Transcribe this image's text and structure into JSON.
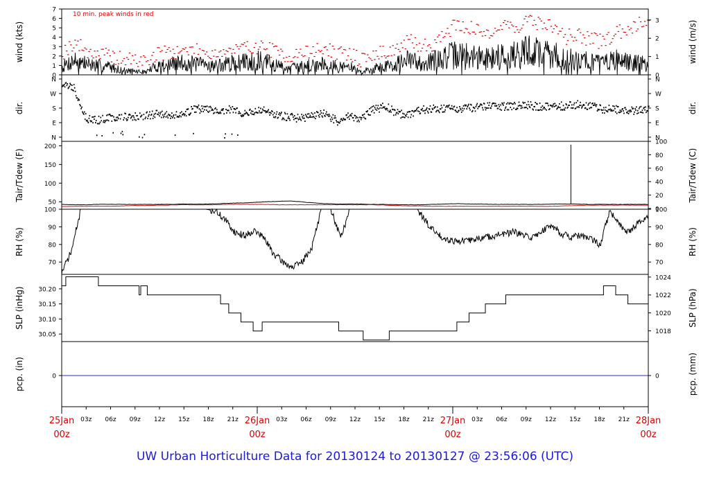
{
  "footer_title": "UW Urban Horticulture Data for 20130124  to  20130127 @ 23:56:06  (UTC)",
  "colors": {
    "axis": "#000000",
    "trace": "#000000",
    "peak": "#dd0000",
    "dewpoint": "#cc1111",
    "precip": "#2a2adb",
    "day_label": "#dd0000",
    "title": "#1a1adb"
  },
  "chart_data": [
    {
      "type": "line",
      "panel": "wind",
      "annotation": "10 min. peak winds in red",
      "ylabel": "wind (kts)",
      "ylabel_right": "wind (m/s)",
      "ylim": [
        0,
        7
      ],
      "yticks": [
        "0",
        "1",
        "2",
        "3",
        "4",
        "5",
        "6",
        "7"
      ],
      "ylim_right": [
        0,
        3.6
      ],
      "yticks_right": [
        "0",
        "1",
        "2",
        "3"
      ],
      "series": [
        {
          "role": "trace",
          "values": [
            0.8,
            1.6,
            1.2,
            1.0,
            0.9,
            0.5,
            0.4,
            0.3,
            1.0,
            1.1,
            1.3,
            1.2,
            1.1,
            1.0,
            1.2,
            1.3,
            1.6,
            1.4,
            1.0,
            0.7,
            0.9,
            1.1,
            1.3,
            0.8,
            0.9,
            0.3,
            0.7,
            0.9,
            1.2,
            1.6,
            1.3,
            1.5,
            1.9,
            2.2,
            2.0,
            1.8,
            1.9,
            2.1,
            2.2,
            2.6,
            2.4,
            2.2,
            1.6,
            1.8,
            1.5,
            1.4,
            1.7,
            1.4,
            1.3,
            1.1
          ]
        },
        {
          "role": "peak",
          "values": [
            2.4,
            3.5,
            2.6,
            2.3,
            2.0,
            1.7,
            1.6,
            1.5,
            2.3,
            2.5,
            2.6,
            2.6,
            2.4,
            2.4,
            2.6,
            2.8,
            3.1,
            2.9,
            2.4,
            2.0,
            2.3,
            2.6,
            2.8,
            2.2,
            2.3,
            1.6,
            2.1,
            2.5,
            2.8,
            3.6,
            3.1,
            3.3,
            4.5,
            5.5,
            5.0,
            4.5,
            4.8,
            5.3,
            5.2,
            5.8,
            5.5,
            5.2,
            4.0,
            4.4,
            3.8,
            3.6,
            4.2,
            4.9,
            5.5,
            6.0
          ]
        }
      ]
    },
    {
      "type": "scatter",
      "panel": "direction",
      "ylabel": "dir.",
      "yticks": [
        "N",
        "E",
        "S",
        "W",
        "N"
      ],
      "ylim": [
        0,
        360
      ],
      "values": [
        330,
        310,
        120,
        110,
        125,
        130,
        130,
        140,
        145,
        140,
        140,
        180,
        175,
        170,
        175,
        150,
        160,
        170,
        140,
        130,
        120,
        140,
        150,
        100,
        135,
        120,
        175,
        195,
        150,
        140,
        175,
        180,
        180,
        180,
        185,
        190,
        195,
        195,
        200,
        200,
        195,
        200,
        195,
        205,
        200,
        180,
        175,
        175,
        170,
        175
      ]
    },
    {
      "type": "line",
      "panel": "temperature",
      "ylabel": "Tair/Tdew (F)",
      "ylabel_right": "Tair/Tdew (C)",
      "ylim": [
        30,
        212
      ],
      "yticks": [
        "50",
        "100",
        "150",
        "200"
      ],
      "ylim_right": [
        -1.1,
        100
      ],
      "yticks_right": [
        "0",
        "20",
        "40",
        "60",
        "80",
        "100"
      ],
      "series": [
        {
          "role": "air",
          "values": [
            43,
            42,
            42,
            43,
            43,
            43,
            43,
            43,
            43,
            43,
            44,
            44,
            44,
            45,
            46,
            47,
            48,
            50,
            51,
            52,
            50,
            47,
            45,
            44,
            44,
            44,
            43,
            43,
            42,
            42,
            42,
            43,
            44,
            45,
            44,
            44,
            43,
            43,
            43,
            43,
            43,
            44,
            44,
            44,
            43,
            43,
            43,
            43,
            43,
            43
          ]
        },
        {
          "role": "dewpoint",
          "values": [
            37,
            38,
            38,
            38,
            38,
            39,
            40,
            40,
            41,
            41,
            42,
            42,
            42,
            42,
            43,
            43,
            43,
            43,
            42,
            42,
            42,
            42,
            42,
            42,
            42,
            42,
            42,
            41,
            40,
            39,
            39,
            38,
            38,
            38,
            38,
            38,
            38,
            38,
            38,
            38,
            38,
            38,
            39,
            40,
            41,
            41,
            41,
            41,
            41,
            41
          ]
        }
      ],
      "spike": {
        "x_hours": 62.5,
        "value": 203
      }
    },
    {
      "type": "line",
      "panel": "humidity",
      "ylabel": "RH (%)",
      "ylim": [
        63,
        100
      ],
      "yticks": [
        "70",
        "80",
        "90",
        "100"
      ],
      "values": [
        64,
        76,
        100,
        100,
        100,
        100,
        100,
        100,
        100,
        100,
        100,
        100,
        100,
        100,
        100,
        100,
        99,
        94,
        87,
        85,
        88,
        84,
        75,
        70,
        67,
        70,
        78,
        100,
        100,
        84,
        100,
        100,
        100,
        100,
        100,
        100,
        100,
        100,
        92,
        86,
        83,
        82,
        82,
        83,
        84,
        85,
        86,
        87,
        85,
        84,
        88,
        91,
        86,
        84,
        85,
        83,
        80,
        99,
        91,
        87,
        93,
        95
      ]
    },
    {
      "type": "line",
      "panel": "pressure",
      "ylabel": "SLP (inHg)",
      "ylabel_right": "SLP (hPa)",
      "ylim": [
        30.025,
        30.248
      ],
      "yticks": [
        "30.05",
        "30.10",
        "30.15",
        "30.20"
      ],
      "ylim_right": [
        1016.8,
        1024.3
      ],
      "yticks_right": [
        "1018",
        "1020",
        "1022",
        "1024"
      ],
      "steps": [
        {
          "x_hours": 0,
          "value": 30.21
        },
        {
          "x_hours": 0.5,
          "value": 30.24
        },
        {
          "x_hours": 4.5,
          "value": 30.21
        },
        {
          "x_hours": 9.5,
          "value": 30.18
        },
        {
          "x_hours": 9.7,
          "value": 30.21
        },
        {
          "x_hours": 10.5,
          "value": 30.18
        },
        {
          "x_hours": 19.5,
          "value": 30.15
        },
        {
          "x_hours": 20.5,
          "value": 30.12
        },
        {
          "x_hours": 22.0,
          "value": 30.09
        },
        {
          "x_hours": 23.5,
          "value": 30.06
        },
        {
          "x_hours": 24.6,
          "value": 30.09
        },
        {
          "x_hours": 34.0,
          "value": 30.06
        },
        {
          "x_hours": 37.0,
          "value": 30.03
        },
        {
          "x_hours": 40.0,
          "value": 30.03
        },
        {
          "x_hours": 40.2,
          "value": 30.06
        },
        {
          "x_hours": 48.5,
          "value": 30.09
        },
        {
          "x_hours": 50.0,
          "value": 30.12
        },
        {
          "x_hours": 52.0,
          "value": 30.15
        },
        {
          "x_hours": 54.5,
          "value": 30.18
        },
        {
          "x_hours": 66.5,
          "value": 30.21
        },
        {
          "x_hours": 68.0,
          "value": 30.18
        },
        {
          "x_hours": 69.5,
          "value": 30.15
        },
        {
          "x_hours": 72.0,
          "value": 30.15
        }
      ]
    },
    {
      "type": "line",
      "panel": "precipitation",
      "ylabel": "pcp. (in)",
      "ylabel_right": "pcp. (mm)",
      "yticks": [
        "0"
      ],
      "yticks_right": [
        "0"
      ],
      "value": 0
    }
  ],
  "x_axis": {
    "range_hours": [
      0,
      72
    ],
    "hour_ticks": [
      {
        "h": 3,
        "label": "03z"
      },
      {
        "h": 6,
        "label": "06z"
      },
      {
        "h": 9,
        "label": "09z"
      },
      {
        "h": 12,
        "label": "12z"
      },
      {
        "h": 15,
        "label": "15z"
      },
      {
        "h": 18,
        "label": "18z"
      },
      {
        "h": 21,
        "label": "21z"
      },
      {
        "h": 27,
        "label": "03z"
      },
      {
        "h": 30,
        "label": "06z"
      },
      {
        "h": 33,
        "label": "09z"
      },
      {
        "h": 36,
        "label": "12z"
      },
      {
        "h": 39,
        "label": "15z"
      },
      {
        "h": 42,
        "label": "18z"
      },
      {
        "h": 45,
        "label": "21z"
      },
      {
        "h": 51,
        "label": "03z"
      },
      {
        "h": 54,
        "label": "06z"
      },
      {
        "h": 57,
        "label": "09z"
      },
      {
        "h": 60,
        "label": "12z"
      },
      {
        "h": 63,
        "label": "15z"
      },
      {
        "h": 66,
        "label": "18z"
      },
      {
        "h": 69,
        "label": "21z"
      }
    ],
    "day_ticks": [
      {
        "h": 0,
        "date": "25Jan",
        "time": "00z"
      },
      {
        "h": 24,
        "date": "26Jan",
        "time": "00z"
      },
      {
        "h": 48,
        "date": "27Jan",
        "time": "00z"
      },
      {
        "h": 72,
        "date": "28Jan",
        "time": "00z"
      }
    ]
  }
}
